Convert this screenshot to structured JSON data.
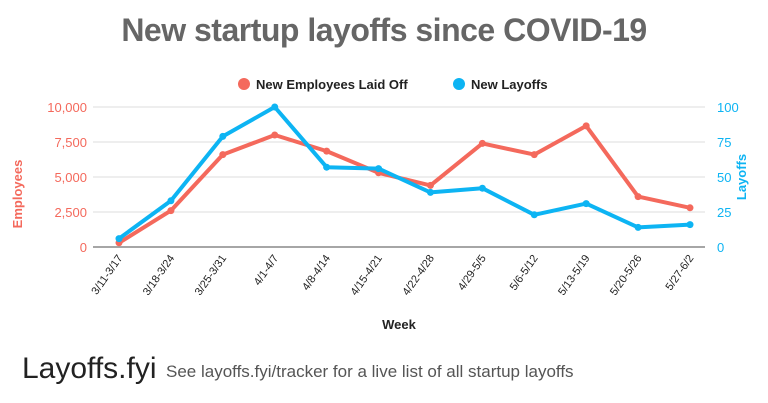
{
  "chart_data": {
    "type": "line",
    "title": "New startup layoffs since COVID-19",
    "xlabel": "Week",
    "ylabel": "Employees",
    "y2label": "Layoffs",
    "categories": [
      "3/11-3/17",
      "3/18-3/24",
      "3/25-3/31",
      "4/1-4/7",
      "4/8-4/14",
      "4/15-4/21",
      "4/22-4/28",
      "4/29-5/5",
      "5/6-5/12",
      "5/13-5/19",
      "5/20-5/26",
      "5/27-6/2"
    ],
    "ylim": [
      0,
      10000
    ],
    "y2lim": [
      0,
      100
    ],
    "yticks": [
      "0",
      "2,500",
      "5,000",
      "7,500",
      "10,000"
    ],
    "y2ticks": [
      "0",
      "25",
      "50",
      "75",
      "100"
    ],
    "grid": true,
    "legend": "top",
    "series": [
      {
        "name": "New Employees Laid Off",
        "axis": "left",
        "color": "#f4695c",
        "values": [
          300,
          2600,
          6600,
          8000,
          6850,
          5300,
          4400,
          7400,
          6600,
          8650,
          3600,
          2800
        ]
      },
      {
        "name": "New Layoffs",
        "axis": "right",
        "color": "#0db4f3",
        "values": [
          6,
          33,
          79,
          100,
          57,
          56,
          39,
          42,
          23,
          31,
          14,
          16
        ]
      }
    ]
  },
  "footer": {
    "logo": "Layoffs.fyi",
    "text": "See layoffs.fyi/tracker for a live list of all startup layoffs"
  }
}
